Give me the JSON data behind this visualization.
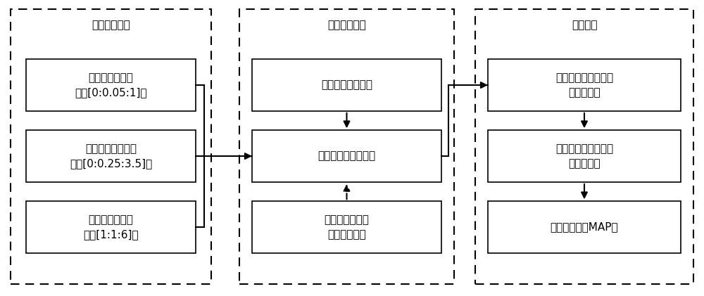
{
  "bg_color": "#ffffff",
  "text_color": "#000000",
  "fig_width": 10.0,
  "fig_height": 4.21,
  "dpi": 100,
  "panel1_title": "仿真初始条件",
  "panel2_title": "仿真试验平台",
  "panel3_title": "数据处理",
  "p1_box1": "固定节气门开度\n（如[0:0.05:1]）",
  "p1_box2": "固定制动主缸压力\n（如[0:0.25:3.5]）",
  "p1_box3": "固定变速器档位\n（如[1:1:6]）",
  "p2_box1": "道路试验模拟环境",
  "p2_box2": "汽车纵向动力学模型",
  "p2_box3": "强非线性部件的\n硬件在环模块",
  "p3_box1": "各档位特征车速区间\n对应加速度",
  "p3_box2": "各档位特征加速度对\n应的速度点",
  "p3_box3": "各档位下控制MAP图"
}
